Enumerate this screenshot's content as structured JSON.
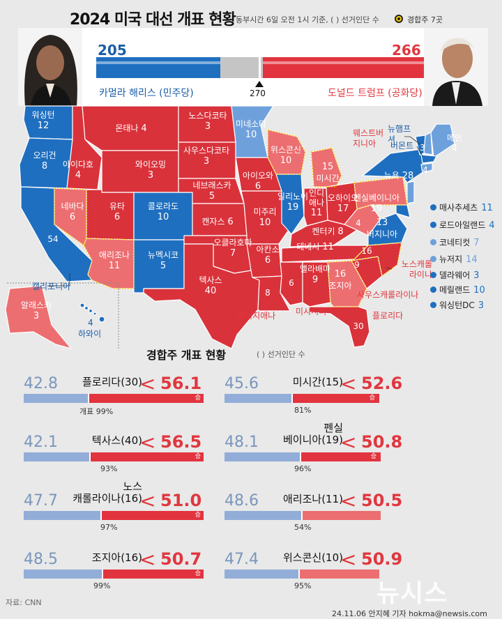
{
  "header": {
    "title": "2024 미국 대선 개표 현황",
    "subtitle": "동부시간 6일 오전 1시 기준, ( ) 선거인단 수",
    "legend_label": "경합주 7곳"
  },
  "candidates": {
    "harris": {
      "name": "카멀라 해리스 (민주당)",
      "votes": "205"
    },
    "trump": {
      "name": "도널드 트럼프 (공화당)",
      "votes": "266"
    },
    "threshold_label": "270"
  },
  "colors": {
    "dem_solid": "#1f6fc0",
    "dem_light": "#6ea1dc",
    "rep_solid": "#d9323b",
    "rep_light": "#ec6e71",
    "background": "#e9e9e9"
  },
  "states": {
    "washington": {
      "name": "워싱턴",
      "votes": "12"
    },
    "oregon": {
      "name": "오리건",
      "votes": "8"
    },
    "california": {
      "name": "캘리포니아",
      "votes": "54"
    },
    "nevada": {
      "name": "네바다",
      "votes": "6"
    },
    "idaho": {
      "name": "아이다호",
      "votes": "4"
    },
    "montana": {
      "name": "몬태나",
      "votes": "4"
    },
    "wyoming": {
      "name": "와이오밍",
      "votes": "3"
    },
    "utah": {
      "name": "유타",
      "votes": "6"
    },
    "colorado": {
      "name": "콜로라도",
      "votes": "10"
    },
    "arizona": {
      "name": "애리조나",
      "votes": "11"
    },
    "new_mexico": {
      "name": "뉴멕시코",
      "votes": "5"
    },
    "north_dakota": {
      "name": "노스다코타",
      "votes": "3"
    },
    "south_dakota": {
      "name": "사우스다코타",
      "votes": "3"
    },
    "nebraska": {
      "name": "네브래스카",
      "votes": "5"
    },
    "kansas": {
      "name": "캔자스",
      "votes": "6"
    },
    "oklahoma": {
      "name": "오클라호마",
      "votes": "7"
    },
    "texas": {
      "name": "텍사스",
      "votes": "40"
    },
    "minnesota": {
      "name": "미네소타",
      "votes": "10"
    },
    "iowa": {
      "name": "아이오와",
      "votes": "6"
    },
    "missouri": {
      "name": "미주리",
      "votes": "10"
    },
    "arkansas": {
      "name": "아칸소",
      "votes": "6"
    },
    "louisiana": {
      "name": "루이지애나",
      "votes": "8"
    },
    "wisconsin": {
      "name": "위스콘신",
      "votes": "10"
    },
    "illinois": {
      "name": "일리노이",
      "votes": "19"
    },
    "michigan": {
      "name": "미시간",
      "votes": "15"
    },
    "indiana": {
      "name": "인디애나",
      "votes": "11"
    },
    "ohio": {
      "name": "오하이오",
      "votes": "17"
    },
    "kentucky": {
      "name": "켄터키",
      "votes": "8"
    },
    "tennessee": {
      "name": "테네시",
      "votes": "11"
    },
    "mississippi": {
      "name": "미시시피",
      "votes": "6"
    },
    "alabama": {
      "name": "앨라배마",
      "votes": "9"
    },
    "georgia": {
      "name": "조지아",
      "votes": "16"
    },
    "florida": {
      "name": "플로리다",
      "votes": "30"
    },
    "south_carolina": {
      "name": "사우스캐롤라이나",
      "votes": "9"
    },
    "north_carolina": {
      "name": "노스캐롤라이나",
      "votes": "16"
    },
    "west_virginia": {
      "name": "웨스트버지니아",
      "votes": "4"
    },
    "virginia": {
      "name": "버지니아",
      "votes": "13"
    },
    "pennsylvania": {
      "name": "펜실베이니아",
      "votes": "19"
    },
    "new_york": {
      "name": "뉴욕",
      "votes": "28"
    },
    "vermont": {
      "name": "버몬트",
      "votes": "3"
    },
    "new_hampshire": {
      "name": "뉴햄프셔",
      "votes": "4"
    },
    "maine": {
      "name": "메인",
      "votes": "4"
    },
    "alaska": {
      "name": "알래스카",
      "votes": "3"
    },
    "hawaii": {
      "name": "하와이",
      "votes": "4"
    }
  },
  "small_states": [
    {
      "name": "매사추세츠",
      "votes": "11",
      "color": "#1f6fc0"
    },
    {
      "name": "로드아일랜드",
      "votes": "4",
      "color": "#1f6fc0"
    },
    {
      "name": "코네티컷",
      "votes": "7",
      "color": "#6ea1dc"
    },
    {
      "name": "뉴저지",
      "votes": "14",
      "color": "#6ea1dc"
    },
    {
      "name": "델라웨어",
      "votes": "3",
      "color": "#1f6fc0"
    },
    {
      "name": "메릴랜드",
      "votes": "10",
      "color": "#1f6fc0"
    },
    {
      "name": "워싱턴DC",
      "votes": "3",
      "color": "#1f6fc0"
    }
  ],
  "battleground": {
    "title": "경합주 개표 현황",
    "subtitle": "( ) 선거인단 수",
    "win_label": "승",
    "states": [
      {
        "name": "플로리다(30)",
        "dem": "42.8",
        "rep": "56.1",
        "counted": "개표 99%"
      },
      {
        "name": "미시간(15)",
        "dem": "45.6",
        "rep": "52.6",
        "counted": "81%"
      },
      {
        "name": "텍사스(40)",
        "dem": "42.1",
        "rep": "56.5",
        "counted": "93%"
      },
      {
        "name_line1": "펜실",
        "name_line2": "베이니아(19)",
        "dem": "48.1",
        "rep": "50.8",
        "counted": "96%"
      },
      {
        "name_line1": "노스",
        "name_line2": "캐롤라이나(16)",
        "dem": "47.7",
        "rep": "51.0",
        "counted": "97%"
      },
      {
        "name": "애리조나(11)",
        "dem": "48.6",
        "rep": "50.5",
        "counted": "54%"
      },
      {
        "name": "조지아(16)",
        "dem": "48.5",
        "rep": "50.7",
        "counted": "99%"
      },
      {
        "name": "위스콘신(10)",
        "dem": "47.4",
        "rep": "50.9",
        "counted": "95%"
      }
    ],
    "lt_symbol": "<"
  },
  "footer": {
    "source": "자료: CNN",
    "credit": "24.11.06 안지혜 기자 hokma@newsis.com",
    "watermark": "뉴시스"
  }
}
